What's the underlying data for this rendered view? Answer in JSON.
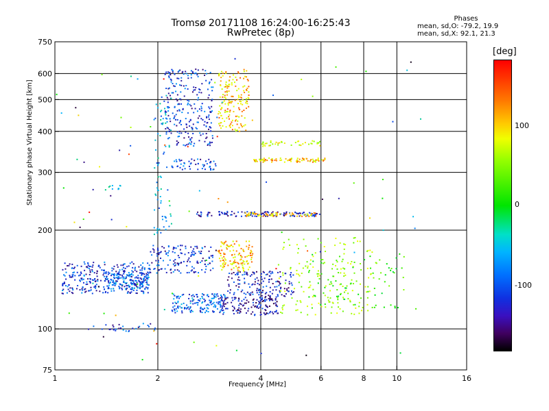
{
  "chart_data": {
    "type": "scatter",
    "title": "Tromsø 20171108 16:24:00-16:25:43",
    "subtitle": "RwPretec (8p)",
    "xlabel": "Frequency [MHz]",
    "ylabel": "Stationary phase Virtual Height [km]",
    "x_scale": "log",
    "y_scale": "log",
    "xlim": [
      1,
      16
    ],
    "ylim": [
      75,
      750
    ],
    "x_ticks": [
      1,
      2,
      4,
      6,
      8,
      10,
      16
    ],
    "y_ticks": [
      75,
      100,
      200,
      300,
      400,
      500,
      600,
      750
    ],
    "grid_x": [
      2,
      4,
      6,
      8,
      10
    ],
    "grid_y": [
      100,
      200,
      300,
      400,
      500,
      600
    ],
    "grid": true,
    "colorbar": {
      "label": "[deg]",
      "ticks": [
        100,
        0,
        -100
      ],
      "range": [
        -180,
        180
      ],
      "colors": [
        "#000000",
        "#400060",
        "#1030e0",
        "#00b4ff",
        "#00e500",
        "#f0ff00",
        "#ff7a00",
        "#ff0000"
      ]
    },
    "stats_header": "Phases",
    "stats": [
      {
        "label": "mean, sd,O:",
        "value": "-79.2, 19.9"
      },
      {
        "label": "mean, sd,X:",
        "value": "92.1, 21.3"
      }
    ],
    "clusters": [
      {
        "f": [
          1.05,
          1.9
        ],
        "h": [
          128,
          160
        ],
        "phase": -100,
        "n": 320
      },
      {
        "f": [
          1.4,
          1.9
        ],
        "h": [
          132,
          148
        ],
        "phase": -85,
        "n": 120
      },
      {
        "f": [
          1.9,
          2.9
        ],
        "h": [
          148,
          180
        ],
        "phase": -100,
        "n": 150
      },
      {
        "f": [
          2.2,
          3.2
        ],
        "h": [
          112,
          128
        ],
        "phase": -85,
        "n": 160
      },
      {
        "f": [
          3.0,
          4.5
        ],
        "h": [
          110,
          125
        ],
        "phase": -120,
        "n": 140
      },
      {
        "f": [
          3.2,
          5.0
        ],
        "h": [
          125,
          150
        ],
        "phase": -110,
        "n": 160
      },
      {
        "f": [
          3.0,
          3.8
        ],
        "h": [
          150,
          185
        ],
        "phase": 110,
        "n": 130
      },
      {
        "f": [
          4.5,
          8.5
        ],
        "h": [
          110,
          190
        ],
        "phase": 70,
        "n": 160
      },
      {
        "f": [
          5.5,
          10.5
        ],
        "h": [
          115,
          170
        ],
        "phase": 20,
        "n": 90
      },
      {
        "f": [
          2.6,
          6.0
        ],
        "h": [
          220,
          228
        ],
        "phase": -110,
        "n": 120
      },
      {
        "f": [
          3.6,
          5.8
        ],
        "h": [
          220,
          226
        ],
        "phase": 110,
        "n": 60
      },
      {
        "f": [
          2.2,
          3.0
        ],
        "h": [
          305,
          330
        ],
        "phase": -100,
        "n": 50
      },
      {
        "f": [
          3.8,
          6.2
        ],
        "h": [
          322,
          332
        ],
        "phase": 110,
        "n": 80
      },
      {
        "f": [
          4.0,
          6.0
        ],
        "h": [
          360,
          375
        ],
        "phase": 80,
        "n": 40
      },
      {
        "f": [
          2.1,
          2.9
        ],
        "h": [
          360,
          620
        ],
        "phase": -100,
        "n": 260
      },
      {
        "f": [
          3.0,
          3.7
        ],
        "h": [
          400,
          620
        ],
        "phase": 110,
        "n": 170
      },
      {
        "f": [
          1.95,
          2.2
        ],
        "h": [
          190,
          520
        ],
        "phase": -60,
        "n": 80
      },
      {
        "f": [
          1.4,
          1.6
        ],
        "h": [
          265,
          275
        ],
        "phase": -40,
        "n": 10
      },
      {
        "f": [
          1.2,
          2.0
        ],
        "h": [
          98,
          104
        ],
        "phase": -100,
        "n": 30
      },
      {
        "f": [
          1.0,
          12.0
        ],
        "h": [
          80,
          700
        ],
        "phase": 0,
        "n": 90
      }
    ]
  }
}
